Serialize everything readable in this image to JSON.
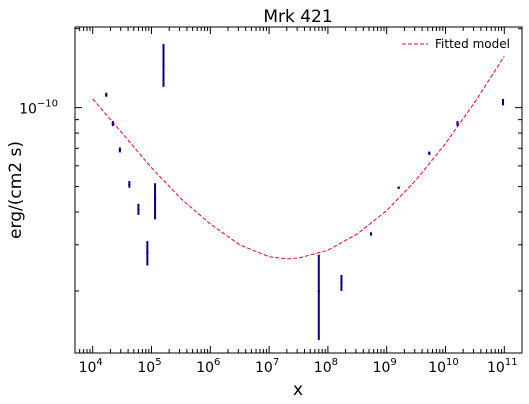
{
  "chart_data": {
    "type": "scatter",
    "title": "Mrk 421",
    "xlabel": "x",
    "ylabel": "erg/(cm2 s)",
    "x_scale": "log",
    "y_scale": "log",
    "xlim": [
      5000,
      200000000000
    ],
    "ylim": [
      1.16e-11,
      2.03e-10
    ],
    "grid": false,
    "legend_placement": "top-right",
    "x_ticks": [
      {
        "value": 10000,
        "base": "10",
        "exp": "4"
      },
      {
        "value": 100000,
        "base": "10",
        "exp": "5"
      },
      {
        "value": 1000000,
        "base": "10",
        "exp": "6"
      },
      {
        "value": 10000000,
        "base": "10",
        "exp": "7"
      },
      {
        "value": 100000000,
        "base": "10",
        "exp": "8"
      },
      {
        "value": 1000000000,
        "base": "10",
        "exp": "9"
      },
      {
        "value": 10000000000,
        "base": "10",
        "exp": "10"
      },
      {
        "value": 100000000000,
        "base": "10",
        "exp": "11"
      }
    ],
    "y_ticks": [
      {
        "value": 1e-10,
        "base": "10",
        "exp": "−10"
      }
    ],
    "series": [
      {
        "name": "",
        "kind": "errorbar",
        "color": "#00008b",
        "points": [
          {
            "x": 17000,
            "y": 1.12e-10,
            "ylo": 1.1e-10,
            "yhi": 1.14e-10
          },
          {
            "x": 22000,
            "y": 8.7e-11,
            "ylo": 8.5e-11,
            "yhi": 8.9e-11
          },
          {
            "x": 29000,
            "y": 6.9e-11,
            "ylo": 6.75e-11,
            "yhi": 7.05e-11
          },
          {
            "x": 42000,
            "y": 5.1e-11,
            "ylo": 4.95e-11,
            "yhi": 5.25e-11
          },
          {
            "x": 60000,
            "y": 4.1e-11,
            "ylo": 3.9e-11,
            "yhi": 4.3e-11
          },
          {
            "x": 85000,
            "y": 2.8e-11,
            "ylo": 2.5e-11,
            "yhi": 3.1e-11
          },
          {
            "x": 115000,
            "y": 4.5e-11,
            "ylo": 3.75e-11,
            "yhi": 5.15e-11
          },
          {
            "x": 160000,
            "y": 1.45e-10,
            "ylo": 1.2e-10,
            "yhi": 1.75e-10
          },
          {
            "x": 70000000,
            "y": 2e-11,
            "ylo": 1.3e-11,
            "yhi": 2.75e-11
          },
          {
            "x": 170000000,
            "y": 2.15e-11,
            "ylo": 2e-11,
            "yhi": 2.3e-11
          },
          {
            "x": 540000000,
            "y": 3.3e-11,
            "ylo": 3.25e-11,
            "yhi": 3.35e-11
          },
          {
            "x": 1600000000,
            "y": 4.95e-11,
            "ylo": 4.9e-11,
            "yhi": 5e-11
          },
          {
            "x": 5300000000,
            "y": 6.7e-11,
            "ylo": 6.6e-11,
            "yhi": 6.8e-11
          },
          {
            "x": 16000000000,
            "y": 8.7e-11,
            "ylo": 8.5e-11,
            "yhi": 8.9e-11
          },
          {
            "x": 95000000000,
            "y": 1.05e-10,
            "ylo": 1.02e-10,
            "yhi": 1.08e-10
          }
        ]
      },
      {
        "name": "Fitted model",
        "kind": "dashed-line",
        "color": "#e8003d",
        "x": [
          10000,
          31600,
          100000,
          316000,
          1000000,
          3160000,
          10000000,
          20000000,
          31600000,
          100000000,
          316000000,
          1000000000,
          3160000000,
          10000000000,
          31600000000,
          100000000000
        ],
        "y": [
          1.08e-10,
          8e-11,
          5.9e-11,
          4.5e-11,
          3.6e-11,
          3e-11,
          2.7e-11,
          2.65e-11,
          2.67e-11,
          2.86e-11,
          3.3e-11,
          4.05e-11,
          5.3e-11,
          7.3e-11,
          1.05e-10,
          1.57e-10
        ]
      }
    ]
  }
}
